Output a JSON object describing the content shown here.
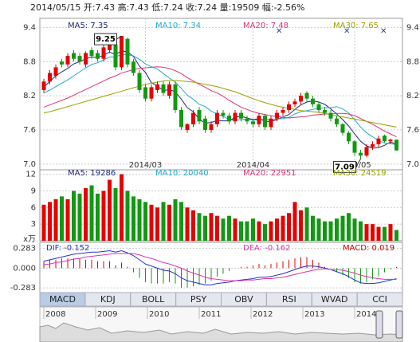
{
  "title": "2014/05/15 开:7.43 高:7.43 低:7.24 收:7.24 量:19509 幅:-2.56%",
  "tabs": [
    "MACD",
    "KDJ",
    "BOLL",
    "PSY",
    "OBV",
    "RSI",
    "WVAD",
    "CCI"
  ],
  "navigator_years": [
    "2008",
    "2009",
    "2010",
    "2011",
    "2012",
    "2013",
    "2014"
  ],
  "chart_data": [
    {
      "type": "candlestick",
      "up_color": "#e60000",
      "down_color": "#119911",
      "open": [
        8.3,
        8.45,
        8.55,
        8.8,
        8.75,
        8.95,
        8.9,
        8.75,
        9.0,
        8.95,
        8.85,
        9.0,
        9.1,
        8.7,
        9.2,
        8.8,
        8.6,
        8.35,
        8.15,
        8.3,
        8.4,
        8.2,
        8.4,
        7.95,
        7.6,
        7.7,
        7.95,
        7.8,
        7.6,
        7.7,
        7.9,
        7.85,
        7.75,
        7.9,
        7.8,
        7.75,
        7.7,
        7.85,
        7.65,
        7.8,
        7.9,
        7.95,
        8.05,
        8.1,
        8.25,
        8.15,
        8.05,
        7.95,
        7.9,
        7.8,
        7.7,
        7.55,
        7.4,
        7.2,
        7.15,
        7.3,
        7.35,
        7.5,
        7.4,
        7.43
      ],
      "high": [
        8.5,
        8.65,
        8.75,
        8.85,
        8.95,
        9.0,
        8.95,
        8.98,
        9.05,
        9.0,
        9.1,
        9.15,
        9.15,
        9.25,
        9.22,
        8.85,
        8.65,
        8.4,
        8.4,
        8.45,
        8.45,
        8.45,
        8.45,
        8.0,
        7.72,
        7.95,
        8.0,
        7.85,
        7.75,
        7.95,
        7.95,
        7.9,
        7.95,
        7.95,
        7.85,
        7.8,
        7.9,
        7.88,
        7.85,
        7.95,
        8.0,
        8.1,
        8.15,
        8.25,
        8.28,
        8.2,
        8.1,
        8.0,
        7.95,
        7.85,
        7.72,
        7.58,
        7.42,
        7.25,
        7.35,
        7.4,
        7.5,
        7.52,
        7.45,
        7.43
      ],
      "low": [
        8.25,
        8.4,
        8.5,
        8.7,
        8.7,
        8.8,
        8.75,
        8.7,
        8.85,
        8.8,
        8.8,
        8.95,
        8.65,
        8.65,
        8.7,
        8.55,
        8.25,
        8.1,
        8.1,
        8.25,
        8.2,
        8.15,
        7.9,
        7.6,
        7.55,
        7.65,
        7.7,
        7.55,
        7.55,
        7.65,
        7.8,
        7.7,
        7.7,
        7.75,
        7.7,
        7.65,
        7.65,
        7.6,
        7.6,
        7.75,
        7.85,
        7.9,
        8.0,
        8.05,
        8.1,
        8.0,
        7.9,
        7.85,
        7.75,
        7.65,
        7.5,
        7.35,
        7.15,
        7.09,
        7.12,
        7.25,
        7.3,
        7.38,
        7.35,
        7.24
      ],
      "close": [
        8.45,
        8.6,
        8.7,
        8.75,
        8.9,
        8.85,
        8.8,
        8.95,
        8.9,
        8.85,
        9.05,
        9.1,
        8.7,
        9.25,
        8.75,
        8.6,
        8.3,
        8.15,
        8.35,
        8.4,
        8.25,
        8.4,
        7.95,
        7.65,
        7.7,
        7.9,
        7.75,
        7.6,
        7.7,
        7.9,
        7.85,
        7.75,
        7.9,
        7.8,
        7.75,
        7.7,
        7.85,
        7.65,
        7.8,
        7.9,
        7.95,
        8.05,
        8.1,
        8.2,
        8.15,
        8.05,
        7.95,
        7.9,
        7.8,
        7.7,
        7.55,
        7.4,
        7.2,
        7.15,
        7.3,
        7.35,
        7.45,
        7.4,
        7.43,
        7.24
      ],
      "series": [
        {
          "name": "MA5: 7.35",
          "color": "#1a2a7a",
          "values": [
            8.35,
            8.45,
            8.55,
            8.62,
            8.68,
            8.76,
            8.8,
            8.85,
            8.88,
            8.87,
            8.91,
            8.97,
            8.92,
            8.99,
            8.97,
            8.89,
            8.72,
            8.61,
            8.43,
            8.37,
            8.29,
            8.31,
            8.27,
            8.14,
            7.99,
            7.92,
            7.79,
            7.72,
            7.73,
            7.77,
            7.76,
            7.76,
            7.82,
            7.84,
            7.81,
            7.78,
            7.8,
            7.75,
            7.75,
            7.78,
            7.83,
            7.87,
            7.96,
            8.04,
            8.09,
            8.11,
            8.09,
            8.05,
            7.97,
            7.88,
            7.78,
            7.67,
            7.53,
            7.4,
            7.32,
            7.28,
            7.29,
            7.33,
            7.39,
            7.35
          ]
        },
        {
          "name": "MA10: 7.34",
          "color": "#22aacc",
          "values": [
            8.25,
            8.3,
            8.36,
            8.42,
            8.48,
            8.55,
            8.62,
            8.69,
            8.75,
            8.78,
            8.83,
            8.88,
            8.88,
            8.93,
            8.92,
            8.9,
            8.84,
            8.76,
            8.71,
            8.67,
            8.59,
            8.51,
            8.44,
            8.33,
            8.21,
            8.14,
            8.05,
            8.01,
            7.93,
            7.88,
            7.84,
            7.78,
            7.77,
            7.78,
            7.79,
            7.77,
            7.78,
            7.79,
            7.78,
            7.79,
            7.8,
            7.82,
            7.88,
            7.92,
            7.94,
            7.96,
            7.98,
            7.99,
            7.99,
            8.01,
            7.97,
            7.9,
            7.78,
            7.65,
            7.55,
            7.48,
            7.41,
            7.37,
            7.36,
            7.34
          ]
        },
        {
          "name": "MA20: 7.48",
          "color": "#dd3377",
          "values": [
            8.0,
            8.04,
            8.08,
            8.12,
            8.16,
            8.21,
            8.26,
            8.31,
            8.36,
            8.41,
            8.46,
            8.51,
            8.55,
            8.6,
            8.63,
            8.66,
            8.68,
            8.69,
            8.7,
            8.71,
            8.7,
            8.68,
            8.64,
            8.59,
            8.52,
            8.46,
            8.4,
            8.35,
            8.29,
            8.25,
            8.19,
            8.12,
            8.06,
            8.0,
            7.96,
            7.92,
            7.89,
            7.87,
            7.85,
            7.84,
            7.82,
            7.81,
            7.82,
            7.83,
            7.84,
            7.86,
            7.87,
            7.88,
            7.88,
            7.89,
            7.89,
            7.88,
            7.85,
            7.8,
            7.75,
            7.7,
            7.64,
            7.58,
            7.53,
            7.48
          ]
        },
        {
          "name": "MA30: 7.65",
          "color": "#99a000",
          "values": [
            7.9,
            7.92,
            7.95,
            7.98,
            8.01,
            8.04,
            8.07,
            8.1,
            8.13,
            8.16,
            8.19,
            8.22,
            8.25,
            8.28,
            8.31,
            8.34,
            8.37,
            8.4,
            8.42,
            8.44,
            8.46,
            8.47,
            8.47,
            8.46,
            8.45,
            8.44,
            8.42,
            8.4,
            8.38,
            8.36,
            8.33,
            8.3,
            8.27,
            8.23,
            8.19,
            8.15,
            8.11,
            8.08,
            8.05,
            8.02,
            8.0,
            7.98,
            7.96,
            7.94,
            7.93,
            7.92,
            7.91,
            7.89,
            7.87,
            7.85,
            7.83,
            7.81,
            7.79,
            7.77,
            7.75,
            7.73,
            7.71,
            7.69,
            7.67,
            7.65
          ]
        }
      ],
      "ylim": [
        6.9,
        9.56
      ],
      "yticks": [
        {
          "value": 7,
          "label": "7.0"
        },
        7.6,
        8.2,
        8.8,
        9.4
      ],
      "xticks": [
        {
          "value": 17,
          "label": "2014/03"
        },
        {
          "value": 35,
          "label": "2014/04"
        },
        {
          "value": 52,
          "label": "2014/05"
        }
      ],
      "grid": true
    },
    {
      "type": "bar",
      "values": [
        6.5,
        7,
        7.5,
        8,
        7.5,
        9,
        8.5,
        9.5,
        10,
        8.5,
        9,
        11,
        9.5,
        12,
        9,
        8,
        7.5,
        7,
        6.5,
        6,
        7,
        6.5,
        7.5,
        7,
        6,
        5.5,
        5,
        4.5,
        5,
        4.5,
        4,
        4.5,
        4,
        3.5,
        3.5,
        4,
        3.5,
        3,
        3.5,
        4,
        4.5,
        5,
        7,
        5.5,
        6,
        4.5,
        4,
        3.5,
        3.5,
        4,
        4.5,
        5,
        4,
        3.5,
        3,
        3,
        2.5,
        2.5,
        3,
        1.95
      ],
      "legend": [
        {
          "name": "MA5: 19286",
          "color": "#1a2a7a"
        },
        {
          "name": "MA10: 20040",
          "color": "#22aacc"
        },
        {
          "name": "MA20: 22951",
          "color": "#dd3377"
        },
        {
          "name": "MA30: 24519",
          "color": "#99a000"
        }
      ],
      "unit_label": "x万",
      "ylim": [
        0,
        12.8
      ],
      "yticks": [
        3,
        6,
        9,
        12
      ],
      "grid": true
    },
    {
      "type": "macd",
      "series": [
        {
          "name": "DIF: -0.152",
          "color": "#2233cc",
          "values": [
            0.1,
            0.12,
            0.14,
            0.16,
            0.18,
            0.2,
            0.21,
            0.22,
            0.23,
            0.23,
            0.24,
            0.25,
            0.23,
            0.25,
            0.22,
            0.18,
            0.12,
            0.06,
            0.03,
            0.0,
            -0.03,
            -0.04,
            -0.08,
            -0.14,
            -0.18,
            -0.2,
            -0.22,
            -0.24,
            -0.24,
            -0.22,
            -0.21,
            -0.2,
            -0.18,
            -0.17,
            -0.16,
            -0.15,
            -0.13,
            -0.13,
            -0.12,
            -0.1,
            -0.08,
            -0.05,
            -0.02,
            0.01,
            0.03,
            0.03,
            0.02,
            0.0,
            -0.02,
            -0.05,
            -0.08,
            -0.12,
            -0.17,
            -0.21,
            -0.22,
            -0.22,
            -0.21,
            -0.19,
            -0.17,
            -0.152
          ]
        },
        {
          "name": "DEA: -0.162",
          "color": "#dd33aa",
          "values": [
            0.05,
            0.06,
            0.08,
            0.09,
            0.11,
            0.13,
            0.14,
            0.16,
            0.17,
            0.18,
            0.19,
            0.2,
            0.21,
            0.21,
            0.21,
            0.21,
            0.19,
            0.16,
            0.14,
            0.11,
            0.08,
            0.06,
            0.03,
            0.0,
            -0.04,
            -0.07,
            -0.1,
            -0.13,
            -0.15,
            -0.16,
            -0.17,
            -0.18,
            -0.18,
            -0.18,
            -0.17,
            -0.17,
            -0.16,
            -0.15,
            -0.15,
            -0.14,
            -0.13,
            -0.11,
            -0.09,
            -0.07,
            -0.05,
            -0.03,
            -0.02,
            -0.01,
            -0.02,
            -0.02,
            -0.03,
            -0.05,
            -0.07,
            -0.1,
            -0.12,
            -0.14,
            -0.15,
            -0.16,
            -0.16,
            -0.162
          ]
        }
      ],
      "histogram": {
        "name": "MACD: 0.019",
        "color": "#cc0000",
        "up_color": "#e60000",
        "down_color": "#119911",
        "values": [
          0.1,
          0.12,
          0.12,
          0.14,
          0.14,
          0.14,
          0.14,
          0.12,
          0.12,
          0.1,
          0.1,
          0.1,
          0.04,
          0.08,
          0.02,
          -0.06,
          -0.14,
          -0.2,
          -0.22,
          -0.22,
          -0.22,
          -0.2,
          -0.22,
          -0.28,
          -0.28,
          -0.26,
          -0.24,
          -0.22,
          -0.18,
          -0.12,
          -0.08,
          -0.04,
          0,
          0.02,
          0.02,
          0.04,
          0.06,
          0.04,
          0.06,
          0.08,
          0.1,
          0.12,
          0.14,
          0.16,
          0.16,
          0.12,
          0.08,
          0.02,
          0,
          -0.06,
          -0.1,
          -0.14,
          -0.2,
          -0.22,
          -0.2,
          -0.16,
          -0.12,
          -0.06,
          -0.02,
          0.019
        ]
      },
      "ylim": [
        -0.35,
        0.37
      ],
      "yticks": [
        -0.283,
        {
          "value": 0,
          "label": "0.000"
        },
        0.283
      ],
      "grid": true
    }
  ]
}
